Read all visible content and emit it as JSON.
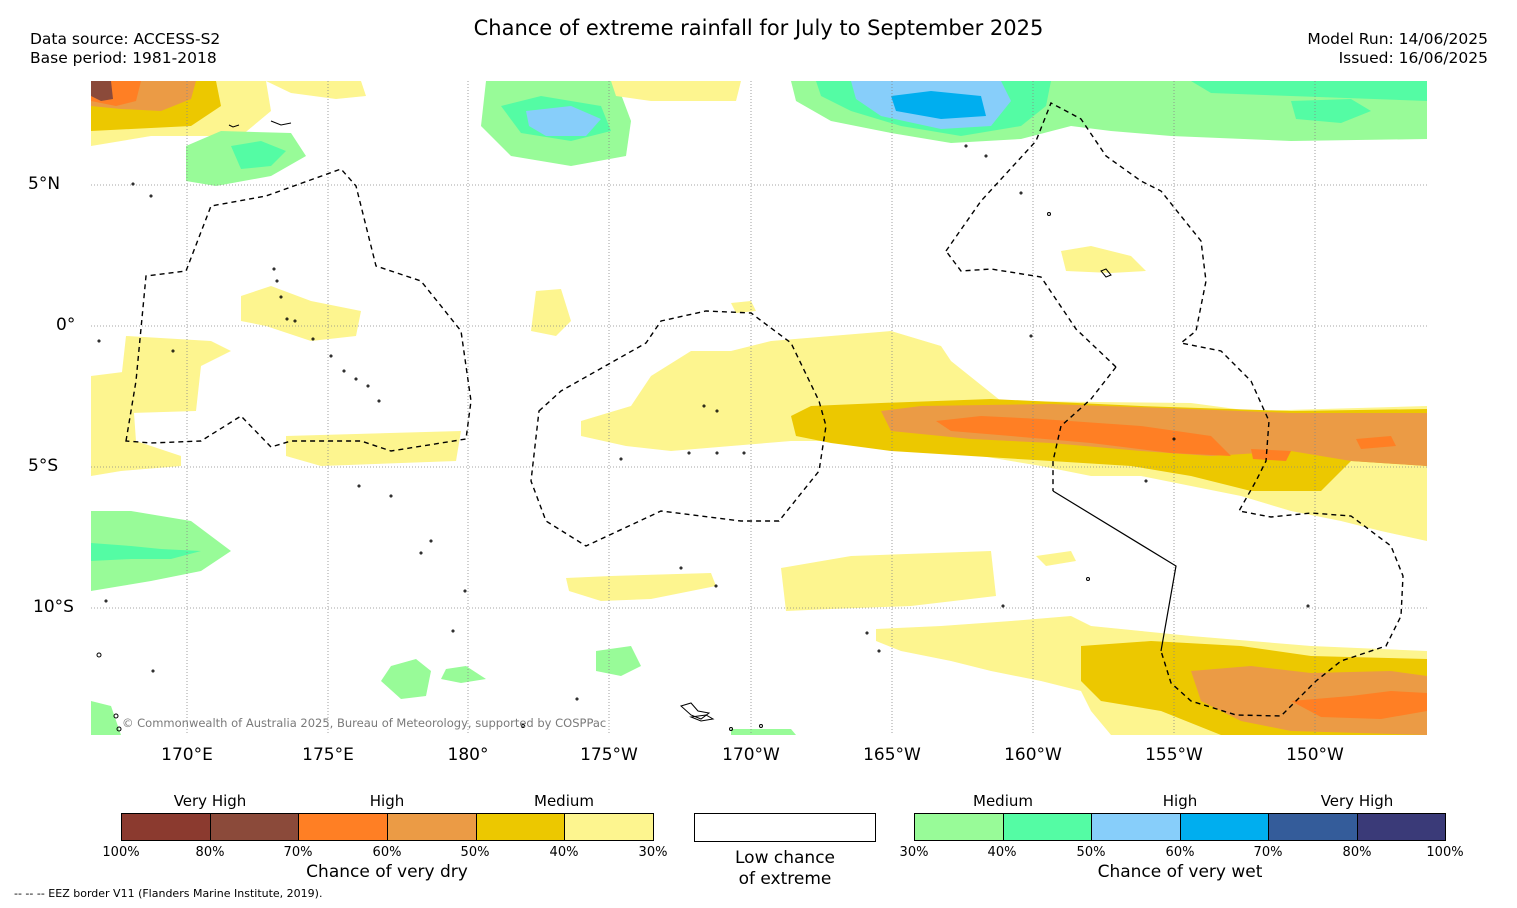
{
  "title": "Chance of extreme rainfall for July to September 2025",
  "meta_left": [
    "Data source: ACCESS-S2",
    "Base period: 1981-2018"
  ],
  "meta_right": [
    "Model Run: 14/06/2025",
    "Issued: 16/06/2025"
  ],
  "lat_labels": [
    "5°N",
    "0°",
    "5°S",
    "10°S"
  ],
  "lon_labels": [
    "170°E",
    "175°E",
    "180°",
    "175°W",
    "170°W",
    "165°W",
    "160°W",
    "155°W",
    "150°W"
  ],
  "copyright": "© Commonwealth of Australia 2025, Bureau of Meteorology, supported by COSPPac",
  "legend": {
    "dry": {
      "categories": [
        "Very High",
        "High",
        "Medium"
      ],
      "ticks": [
        "100%",
        "80%",
        "70%",
        "60%",
        "50%",
        "40%",
        "30%"
      ],
      "title": "Chance of very dry",
      "colors": [
        "#8b3a2f",
        "#8b4a3a",
        "#ff7f24",
        "#eb9b45",
        "#ecc800",
        "#fdf58f"
      ]
    },
    "low": {
      "title_line1": "Low chance",
      "title_line2": "of extreme"
    },
    "wet": {
      "categories": [
        "Medium",
        "High",
        "Very High"
      ],
      "ticks": [
        "30%",
        "40%",
        "50%",
        "60%",
        "70%",
        "80%",
        "100%"
      ],
      "title": "Chance of very wet",
      "colors": [
        "#98fb98",
        "#54fca4",
        "#87cefa",
        "#00aeef",
        "#345c9a",
        "#3a3a78"
      ]
    }
  },
  "eez_note": "-- -- -- EEZ border V11 (Flanders Marine Institute, 2019)."
}
